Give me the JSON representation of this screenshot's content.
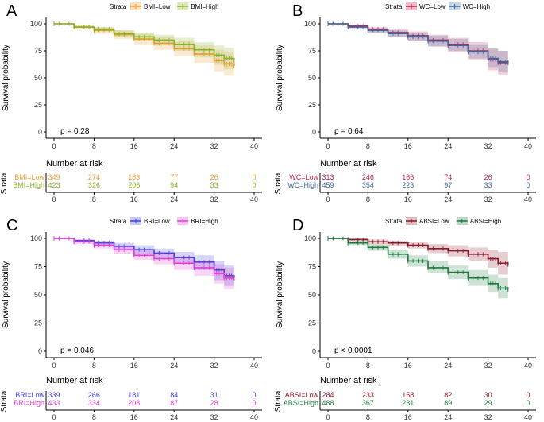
{
  "chart_data": [
    {
      "type": "line",
      "panel_letter": "A",
      "legend_title": "Strata",
      "series": [
        {
          "name": "BMI=Low",
          "color": "#f39c34",
          "x": [
            0,
            4,
            8,
            12,
            16,
            20,
            24,
            28,
            32,
            34,
            36
          ],
          "values": [
            100,
            97,
            94,
            90,
            86,
            82,
            77,
            72,
            66,
            63,
            61
          ],
          "ci_lower": [
            100,
            95,
            91,
            86,
            81,
            76,
            70,
            64,
            56,
            52,
            50
          ],
          "ci_upper": [
            100,
            99,
            97,
            94,
            91,
            88,
            84,
            80,
            76,
            74,
            72
          ]
        },
        {
          "name": "BMI=High",
          "color": "#8db02a",
          "x": [
            0,
            4,
            8,
            12,
            16,
            20,
            24,
            28,
            32,
            34,
            36
          ],
          "values": [
            100,
            97,
            95,
            91,
            88,
            85,
            81,
            76,
            71,
            68,
            66
          ],
          "ci_lower": [
            100,
            96,
            93,
            88,
            84,
            80,
            75,
            69,
            62,
            58,
            56
          ],
          "ci_upper": [
            100,
            99,
            97,
            94,
            92,
            90,
            87,
            83,
            80,
            78,
            76
          ]
        }
      ],
      "pvalue": "p = 0.28",
      "xlabel": "",
      "ylabel": "Survival probability",
      "xticks": [
        "0",
        "8",
        "16",
        "24",
        "32",
        "40"
      ],
      "yticks": [
        "0",
        "25",
        "50",
        "75",
        "100"
      ],
      "xlim": [
        0,
        40
      ],
      "ylim": [
        0,
        100
      ],
      "risk_table": {
        "title": "Number at risk",
        "ylabel": "Strata",
        "rows": [
          {
            "label": "BMI=Low",
            "counts": [
              "349",
              "274",
              "183",
              "77",
              "26",
              "0"
            ]
          },
          {
            "label": "BMI=High",
            "counts": [
              "423",
              "326",
              "206",
              "94",
              "33",
              "0"
            ]
          }
        ]
      }
    },
    {
      "type": "line",
      "panel_letter": "B",
      "legend_title": "Strata",
      "series": [
        {
          "name": "WC=Low",
          "color": "#c0224f",
          "x": [
            0,
            4,
            8,
            12,
            16,
            20,
            24,
            28,
            32,
            34,
            36
          ],
          "values": [
            100,
            98,
            95,
            92,
            89,
            85,
            81,
            75,
            67,
            64,
            64
          ],
          "ci_lower": [
            100,
            96,
            92,
            88,
            84,
            79,
            74,
            67,
            57,
            53,
            52
          ],
          "ci_upper": [
            100,
            99,
            97,
            95,
            93,
            90,
            87,
            83,
            77,
            75,
            75
          ]
        },
        {
          "name": "WC=High",
          "color": "#3f6a9e",
          "x": [
            0,
            4,
            8,
            12,
            16,
            20,
            24,
            28,
            32,
            34,
            36
          ],
          "values": [
            100,
            97,
            94,
            91,
            88,
            84,
            80,
            74,
            68,
            65,
            64
          ],
          "ci_lower": [
            100,
            96,
            92,
            88,
            84,
            79,
            75,
            68,
            60,
            56,
            55
          ],
          "ci_upper": [
            100,
            99,
            96,
            94,
            92,
            89,
            86,
            81,
            77,
            75,
            74
          ]
        }
      ],
      "pvalue": "p = 0.64",
      "xlabel": "",
      "ylabel": "Survival probability",
      "xticks": [
        "0",
        "8",
        "16",
        "24",
        "32",
        "40"
      ],
      "yticks": [
        "0",
        "25",
        "50",
        "75",
        "100"
      ],
      "xlim": [
        0,
        40
      ],
      "ylim": [
        0,
        100
      ],
      "risk_table": {
        "title": "Number at risk",
        "ylabel": "Strata",
        "rows": [
          {
            "label": "WC=Low",
            "counts": [
              "313",
              "246",
              "166",
              "74",
              "26",
              "0"
            ]
          },
          {
            "label": "WC=High",
            "counts": [
              "459",
              "354",
              "223",
              "97",
              "33",
              "0"
            ]
          }
        ]
      }
    },
    {
      "type": "line",
      "panel_letter": "C",
      "legend_title": "Strata",
      "series": [
        {
          "name": "BRI=Low",
          "color": "#3f3fe0",
          "x": [
            0,
            4,
            8,
            12,
            16,
            20,
            24,
            28,
            32,
            34,
            36
          ],
          "values": [
            100,
            98,
            96,
            93,
            90,
            87,
            83,
            79,
            72,
            67,
            65
          ],
          "ci_lower": [
            100,
            97,
            93,
            90,
            86,
            82,
            78,
            72,
            63,
            58,
            55
          ],
          "ci_upper": [
            100,
            99,
            98,
            96,
            94,
            91,
            88,
            85,
            80,
            76,
            75
          ]
        },
        {
          "name": "BRI=High",
          "color": "#e040d0",
          "x": [
            0,
            4,
            8,
            12,
            16,
            20,
            24,
            28,
            32,
            34,
            36
          ],
          "values": [
            100,
            97,
            94,
            90,
            85,
            82,
            78,
            74,
            69,
            65,
            65
          ],
          "ci_lower": [
            100,
            95,
            91,
            86,
            81,
            77,
            72,
            67,
            60,
            55,
            54
          ],
          "ci_upper": [
            100,
            99,
            97,
            94,
            90,
            87,
            84,
            80,
            77,
            74,
            74
          ]
        }
      ],
      "pvalue": "p = 0.046",
      "xlabel": "",
      "ylabel": "Survival probability",
      "xticks": [
        "0",
        "8",
        "16",
        "24",
        "32",
        "40"
      ],
      "yticks": [
        "0",
        "25",
        "50",
        "75",
        "100"
      ],
      "xlim": [
        0,
        40
      ],
      "ylim": [
        0,
        100
      ],
      "risk_table": {
        "title": "Number at risk",
        "ylabel": "Strata",
        "rows": [
          {
            "label": "BRI=Low",
            "counts": [
              "339",
              "266",
              "181",
              "84",
              "31",
              "0"
            ]
          },
          {
            "label": "BRI=High",
            "counts": [
              "433",
              "334",
              "208",
              "87",
              "28",
              "0"
            ]
          }
        ]
      }
    },
    {
      "type": "line",
      "panel_letter": "D",
      "legend_title": "Strata",
      "series": [
        {
          "name": "ABSI=Low",
          "color": "#8b1a2b",
          "x": [
            0,
            4,
            8,
            12,
            16,
            20,
            24,
            28,
            32,
            34,
            36
          ],
          "values": [
            100,
            99,
            97,
            96,
            94,
            91,
            89,
            86,
            82,
            78,
            77
          ],
          "ci_lower": [
            100,
            98,
            95,
            93,
            91,
            87,
            84,
            80,
            74,
            68,
            66
          ],
          "ci_upper": [
            100,
            100,
            99,
            98,
            97,
            95,
            94,
            92,
            90,
            88,
            88
          ]
        },
        {
          "name": "ABSI=High",
          "color": "#1f7a3f",
          "x": [
            0,
            4,
            8,
            12,
            16,
            20,
            24,
            28,
            32,
            34,
            36
          ],
          "values": [
            100,
            96,
            92,
            86,
            80,
            74,
            70,
            65,
            60,
            56,
            55
          ],
          "ci_lower": [
            100,
            94,
            89,
            82,
            75,
            69,
            64,
            58,
            52,
            47,
            46
          ],
          "ci_upper": [
            100,
            98,
            95,
            90,
            85,
            80,
            76,
            72,
            68,
            65,
            64
          ]
        }
      ],
      "pvalue": "p < 0.0001",
      "xlabel": "",
      "ylabel": "Survival probability",
      "xticks": [
        "0",
        "8",
        "16",
        "24",
        "32",
        "40"
      ],
      "yticks": [
        "0",
        "25",
        "50",
        "75",
        "100"
      ],
      "xlim": [
        0,
        40
      ],
      "ylim": [
        0,
        100
      ],
      "risk_table": {
        "title": "Number at risk",
        "ylabel": "Strata",
        "rows": [
          {
            "label": "ABSI=Low",
            "counts": [
              "284",
              "233",
              "158",
              "82",
              "30",
              "0"
            ]
          },
          {
            "label": "ABSI=High",
            "counts": [
              "488",
              "367",
              "231",
              "89",
              "29",
              "0"
            ]
          }
        ]
      }
    }
  ]
}
